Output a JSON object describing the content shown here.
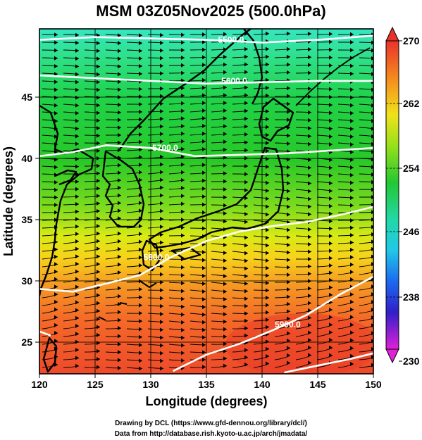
{
  "title": "MSM 03Z05Nov2025 (500.0hPa)",
  "axes": {
    "xlabel": "Longitude (degrees)",
    "ylabel": "Latitude  (degrees)",
    "xticks": [
      "120",
      "125",
      "130",
      "135",
      "140",
      "145",
      "150"
    ],
    "yticks": [
      "25",
      "30",
      "35",
      "40",
      "45"
    ],
    "xlim": [
      120,
      150
    ],
    "ylim": [
      22.4,
      47.6
    ]
  },
  "colorbar": {
    "min": 230,
    "max": 270,
    "tick_labels": [
      "270",
      "262",
      "254",
      "246",
      "238",
      "230"
    ]
  },
  "contours": {
    "labels": [
      "5500.0",
      "5600.0",
      "5700.0",
      "5800.0",
      "5900.0"
    ]
  },
  "credits": {
    "line1": "Drawing by DCL (https://www.gfd-dennou.org/library/dcl/)",
    "line2": "Data from http://database.rish.kyoto-u.ac.jp/arch/jmadata/"
  },
  "chart_data": {
    "type": "heatmap",
    "title": "MSM 03Z05Nov2025 (500.0hPa)",
    "xlabel": "Longitude (degrees)",
    "ylabel": "Latitude  (degrees)",
    "xlim": [
      120,
      150
    ],
    "ylim": [
      22.4,
      47.6
    ],
    "colorbar_range": [
      230,
      270
    ],
    "colorbar_ticks": [
      230,
      238,
      246,
      254,
      262,
      270
    ],
    "field": "temperature (shaded), geopotential height (contours), wind (streamlines)",
    "temperature_profile_by_latitude": [
      {
        "lat": 47,
        "value": 246
      },
      {
        "lat": 45,
        "value": 250
      },
      {
        "lat": 42,
        "value": 253
      },
      {
        "lat": 38,
        "value": 255
      },
      {
        "lat": 35,
        "value": 257
      },
      {
        "lat": 32,
        "value": 260
      },
      {
        "lat": 29,
        "value": 263
      },
      {
        "lat": 26,
        "value": 266
      },
      {
        "lat": 23,
        "value": 268
      }
    ],
    "height_contours": [
      {
        "value": 5500,
        "points": [
          [
            120,
            46.8
          ],
          [
            125,
            47.0
          ],
          [
            130,
            46.9
          ],
          [
            135,
            46.8
          ],
          [
            140,
            46.6
          ],
          [
            145,
            46.8
          ],
          [
            150,
            47.1
          ]
        ]
      },
      {
        "value": 5600,
        "points": [
          [
            120,
            44.2
          ],
          [
            125,
            44.0
          ],
          [
            130,
            43.8
          ],
          [
            135,
            43.6
          ],
          [
            140,
            43.7
          ],
          [
            145,
            43.8
          ],
          [
            150,
            43.8
          ]
        ]
      },
      {
        "value": 5700,
        "points": [
          [
            120,
            38.3
          ],
          [
            123,
            38.6
          ],
          [
            126,
            39.1
          ],
          [
            130,
            38.9
          ],
          [
            134,
            38.3
          ],
          [
            138,
            38.4
          ],
          [
            142,
            38.5
          ],
          [
            146,
            38.7
          ],
          [
            150,
            38.9
          ]
        ]
      },
      {
        "value": 5800,
        "points": [
          [
            120,
            28.6
          ],
          [
            123,
            28.4
          ],
          [
            126,
            29.0
          ],
          [
            129,
            29.6
          ],
          [
            132,
            31.0
          ],
          [
            135,
            32.1
          ],
          [
            138,
            32.8
          ],
          [
            141,
            33.2
          ],
          [
            144,
            33.5
          ],
          [
            147,
            34.0
          ],
          [
            150,
            34.6
          ]
        ]
      },
      {
        "value": 5900,
        "points": [
          [
            132,
            22.6
          ],
          [
            135,
            23.8
          ],
          [
            138,
            24.6
          ],
          [
            141,
            25.6
          ],
          [
            144,
            26.7
          ],
          [
            147,
            28.2
          ],
          [
            150,
            29.5
          ]
        ]
      },
      {
        "value": 5900,
        "points": [
          [
            142,
            22.5
          ],
          [
            145,
            23.0
          ],
          [
            148,
            23.5
          ],
          [
            150,
            23.9
          ]
        ]
      },
      {
        "value": 5900,
        "points": [
          [
            120,
            25.5
          ],
          [
            121,
            25.2
          ]
        ]
      }
    ],
    "contour_labels": [
      {
        "text": "5500.0",
        "lon": 137.2,
        "lat": 46.6
      },
      {
        "text": "5600.0",
        "lon": 137.5,
        "lat": 43.6
      },
      {
        "text": "5700.0",
        "lon": 131.3,
        "lat": 38.7
      },
      {
        "text": "5800.0",
        "lon": 130.5,
        "lat": 30.7
      },
      {
        "text": "5900.0",
        "lon": 142.3,
        "lat": 25.8
      }
    ]
  }
}
